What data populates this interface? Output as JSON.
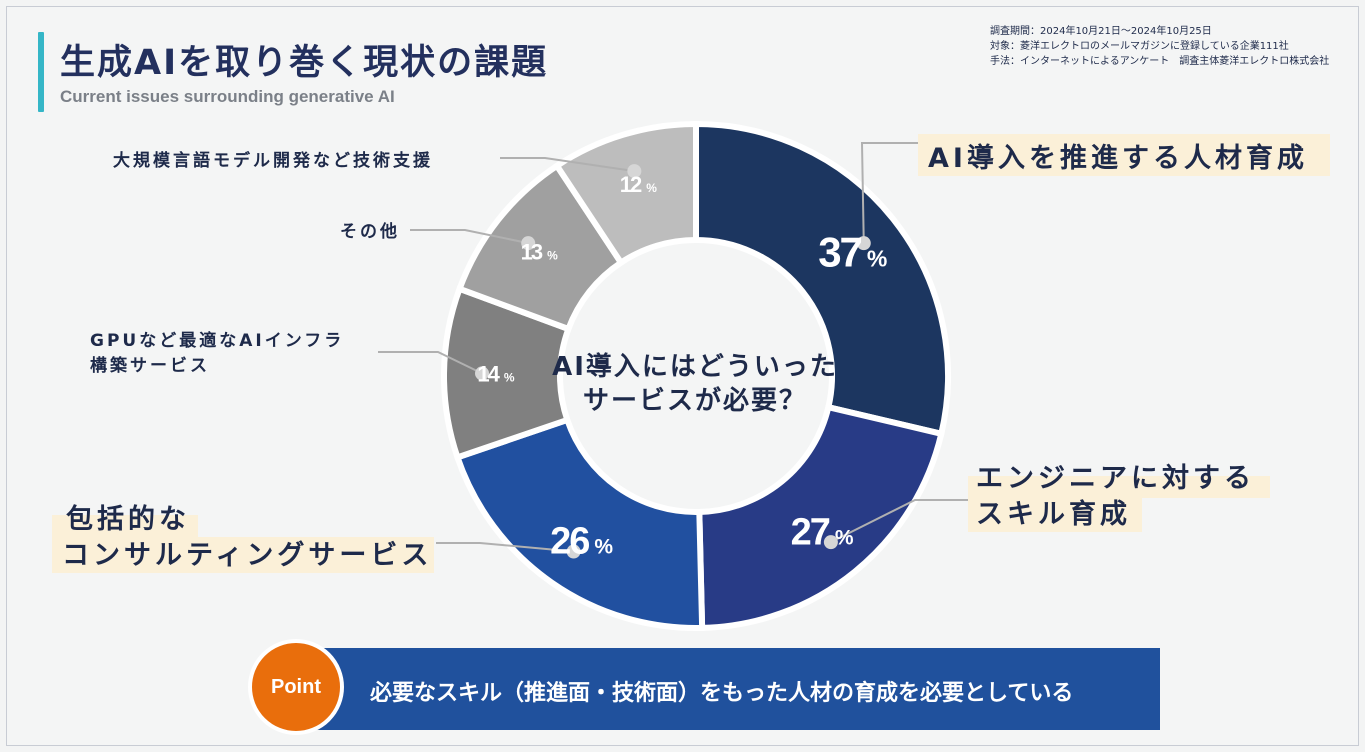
{
  "header": {
    "title": "生成AIを取り巻く現状の課題",
    "subtitle": "Current issues surrounding generative AI"
  },
  "meta": {
    "line1": "調査期間：2024年10月21日～2024年10月25日",
    "line2": "対象：菱洋エレクトロのメールマガジンに登録している企業111社",
    "line3": "手法：インターネットによるアンケート　調査主体菱洋エレクトロ株式会社"
  },
  "center_question": {
    "line1": "AI導入にはどういった",
    "line2": "サービスが必要？"
  },
  "labels": {
    "talent": "AI導入を推進する人材育成",
    "engineer_1": "エンジニアに対する",
    "engineer_2": "スキル育成",
    "consulting_1": "包括的な",
    "consulting_2": "コンサルティングサービス",
    "gpu_1": "GPUなど最適なAIインフラ",
    "gpu_2": "構築サービス",
    "other": "その他",
    "llm": "大規模言語モデル開発など技術支援"
  },
  "point": {
    "badge": "Point",
    "text": "必要なスキル（推進面・技術面）をもった人材の育成を必要としている"
  },
  "chart_data": {
    "type": "pie",
    "donut": true,
    "categories": [
      "AI導入を推進する人材育成",
      "エンジニアに対するスキル育成",
      "包括的なコンサルティングサービス",
      "GPUなど最適なAIインフラ構築サービス",
      "その他",
      "大規模言語モデル開発など技術支援"
    ],
    "values": [
      37,
      27,
      26,
      14,
      13,
      12
    ],
    "value_labels": [
      "37",
      "27",
      "26",
      "14",
      "13",
      "12"
    ],
    "unit": "%",
    "colors": [
      "#1c3660",
      "#283b86",
      "#2150a0",
      "#808080",
      "#a0a0a0",
      "#bdbdbd"
    ]
  }
}
